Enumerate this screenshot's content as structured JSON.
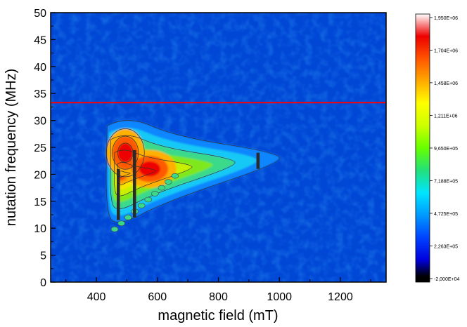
{
  "chart_data": {
    "type": "heatmap",
    "title": "",
    "xlabel": "magnetic field (mT)",
    "ylabel": "nutation frequency (MHz)",
    "xlim": [
      250,
      1350
    ],
    "ylim": [
      0,
      50
    ],
    "x_ticks": [
      400,
      600,
      800,
      1000,
      1200
    ],
    "y_ticks": [
      0,
      5,
      10,
      15,
      20,
      25,
      30,
      35,
      40,
      45,
      50
    ],
    "grid": false,
    "colorscale": {
      "min": -20000,
      "max": 1950000,
      "tick_labels": [
        "1,950E+06",
        "1,704E+06",
        "1,458E+06",
        "1,211E+06",
        "9,650E+05",
        "7,188E+05",
        "4,725E+05",
        "2,263E+05",
        "-2,000E+04"
      ],
      "tick_values": [
        1950000,
        1704000,
        1458000,
        1211000,
        965000,
        718800,
        472500,
        226300,
        -20000
      ],
      "colors": [
        "#000000",
        "#0000dd",
        "#0044ff",
        "#0099ff",
        "#00e5ff",
        "#22e07a",
        "#66ff00",
        "#ccff00",
        "#ffff00",
        "#ffaa00",
        "#ff5500",
        "#ee0000",
        "#ffffff"
      ],
      "background": "#0047d6"
    },
    "features": [
      {
        "name": "peak",
        "x": 495,
        "y": 24,
        "value": 1900000
      },
      {
        "name": "peak",
        "x": 575,
        "y": 21,
        "value": 1750000
      }
    ],
    "reference_line": {
      "y": 33.3,
      "color": "#ff0000"
    },
    "vertical_markers": [
      {
        "x": 472,
        "y_from": 11.5,
        "y_to": 21
      },
      {
        "x": 525,
        "y_from": 12,
        "y_to": 24.5
      },
      {
        "x": 930,
        "y_from": 21,
        "y_to": 24
      }
    ]
  }
}
